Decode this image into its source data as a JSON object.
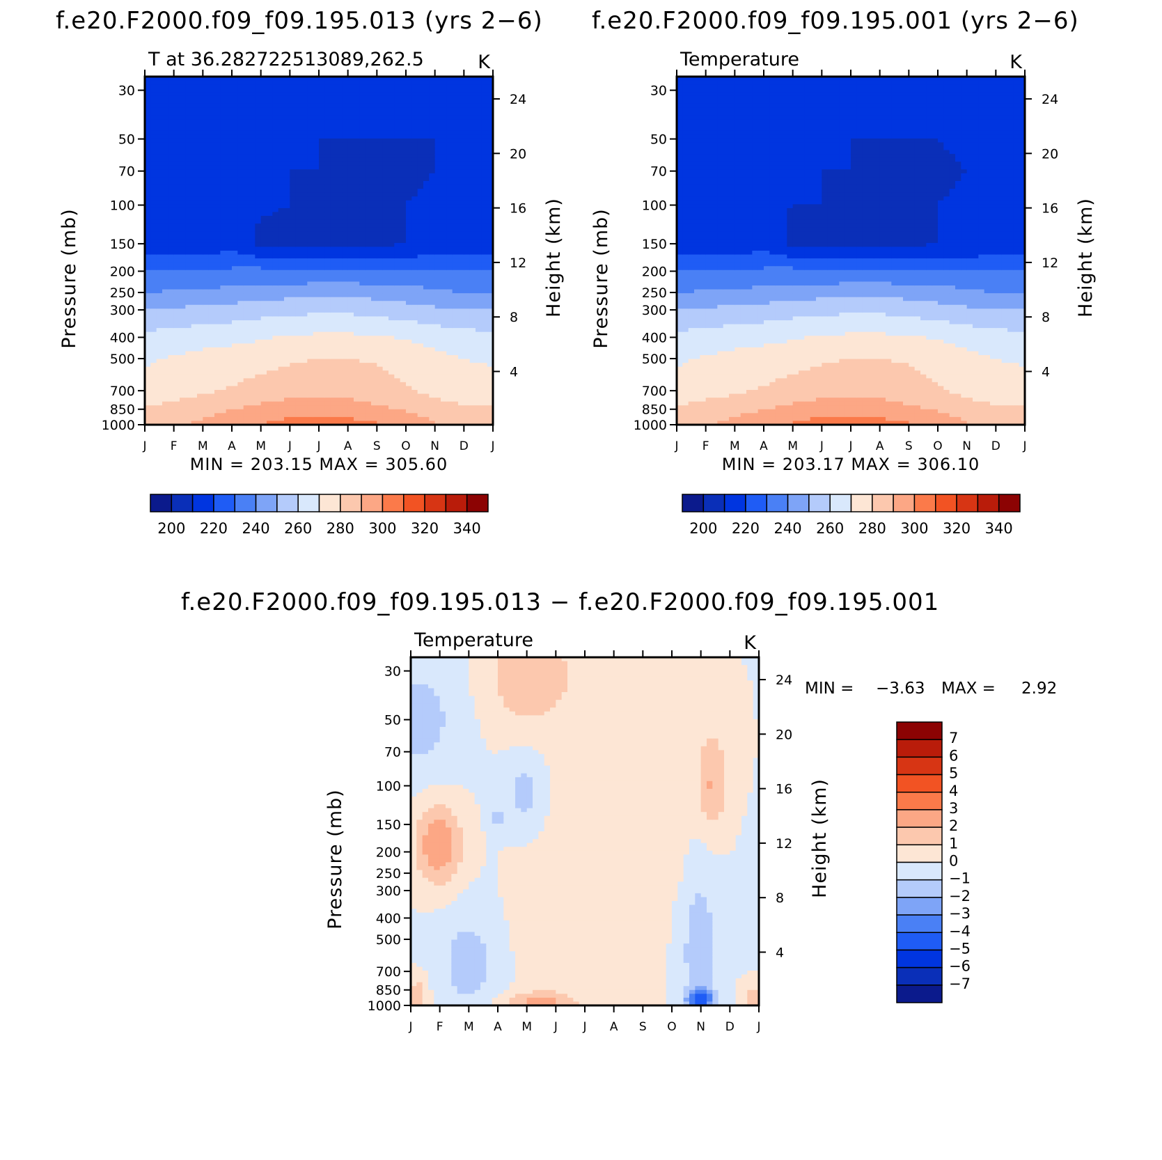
{
  "titles": {
    "top_left": "f.e20.F2000.f09_f09.195.013 (yrs 2−6)",
    "top_right": "f.e20.F2000.f09_f09.195.001 (yrs 2−6)",
    "bottom": "f.e20.F2000.f09_f09.195.013 − f.e20.F2000.f09_f09.195.001"
  },
  "chart_data": [
    {
      "type": "heatmap",
      "subtitle": "T at 36.282722513089,262.5",
      "units": "K",
      "ylabel": "Pressure (mb)",
      "ylabel_right": "Height (km)",
      "x_ticks": [
        "J",
        "F",
        "M",
        "A",
        "M",
        "J",
        "J",
        "A",
        "S",
        "O",
        "N",
        "D",
        "J"
      ],
      "y_ticks": [
        30,
        50,
        70,
        100,
        150,
        200,
        250,
        300,
        400,
        500,
        700,
        850,
        1000
      ],
      "y_ticks_right": [
        24,
        20,
        16,
        12,
        8,
        4
      ],
      "min_max_text": "MIN = 203.15 MAX = 305.60",
      "min": 203.15,
      "max": 305.6,
      "colorbar_labels": [
        "200",
        "220",
        "240",
        "260",
        "280",
        "300",
        "320",
        "340"
      ],
      "colorbar_levels": [
        200,
        210,
        220,
        230,
        240,
        250,
        260,
        270,
        280,
        290,
        300,
        310,
        320,
        330,
        340
      ],
      "palette": [
        "#0b1a8c",
        "#0a2fb8",
        "#0035e0",
        "#1f5cf5",
        "#4a80f5",
        "#7ea4f7",
        "#b4cbfb",
        "#d9e8fc",
        "#fde6d5",
        "#fcc8ae",
        "#fca785",
        "#fb7a4a",
        "#f25323",
        "#d73514",
        "#b91c0a",
        "#8c0303"
      ],
      "profile_columns": [
        {
          "t": 0,
          "y": [
            215,
            212,
            213,
            211,
            213,
            230,
            240,
            250,
            263,
            269,
            273,
            281,
            285
          ]
        },
        {
          "t": 1,
          "y": [
            215,
            211,
            212,
            211,
            213,
            230,
            241,
            251,
            264,
            271,
            275,
            284,
            288
          ]
        },
        {
          "t": 2,
          "y": [
            214,
            211,
            212,
            211,
            214,
            231,
            242,
            253,
            266,
            273,
            278,
            287,
            292
          ]
        },
        {
          "t": 3,
          "y": [
            214,
            211,
            211,
            211,
            215,
            232,
            243,
            254,
            267,
            275,
            281,
            290,
            296
          ]
        },
        {
          "t": 4,
          "y": [
            215,
            211,
            211,
            211,
            208,
            233,
            245,
            256,
            269,
            277,
            283,
            293,
            300
          ]
        },
        {
          "t": 5,
          "y": [
            216,
            211,
            210,
            210,
            207,
            231,
            246,
            257,
            271,
            279,
            285,
            296,
            303
          ]
        },
        {
          "t": 6,
          "y": [
            217,
            210,
            210,
            209,
            207,
            231,
            247,
            258,
            272,
            280,
            286,
            296,
            305
          ]
        },
        {
          "t": 7,
          "y": [
            217,
            210,
            209,
            208,
            208,
            231,
            247,
            258,
            272,
            280,
            286,
            295,
            304
          ]
        },
        {
          "t": 8,
          "y": [
            217,
            210,
            209,
            209,
            208,
            231,
            246,
            256,
            271,
            279,
            284,
            292,
            301
          ]
        },
        {
          "t": 9,
          "y": [
            216,
            210,
            209,
            210,
            210,
            231,
            244,
            254,
            269,
            277,
            281,
            289,
            297
          ]
        },
        {
          "t": 10,
          "y": [
            215,
            210,
            210,
            211,
            212,
            230,
            242,
            252,
            266,
            273,
            277,
            285,
            291
          ]
        },
        {
          "t": 11,
          "y": [
            215,
            211,
            211,
            213,
            214,
            230,
            240,
            250,
            264,
            270,
            274,
            282,
            287
          ]
        },
        {
          "t": 12,
          "y": [
            215,
            212,
            213,
            211,
            213,
            230,
            240,
            250,
            263,
            269,
            273,
            281,
            285
          ]
        }
      ]
    },
    {
      "type": "heatmap",
      "subtitle": "Temperature",
      "units": "K",
      "ylabel": "Pressure (mb)",
      "ylabel_right": "Height (km)",
      "x_ticks": [
        "J",
        "F",
        "M",
        "A",
        "M",
        "J",
        "J",
        "A",
        "S",
        "O",
        "N",
        "D",
        "J"
      ],
      "y_ticks": [
        30,
        50,
        70,
        100,
        150,
        200,
        250,
        300,
        400,
        500,
        700,
        850,
        1000
      ],
      "y_ticks_right": [
        24,
        20,
        16,
        12,
        8,
        4
      ],
      "min_max_text": "MIN = 203.17 MAX = 306.10",
      "min": 203.17,
      "max": 306.1,
      "colorbar_labels": [
        "200",
        "220",
        "240",
        "260",
        "280",
        "300",
        "320",
        "340"
      ],
      "colorbar_levels": [
        200,
        210,
        220,
        230,
        240,
        250,
        260,
        270,
        280,
        290,
        300,
        310,
        320,
        330,
        340
      ],
      "palette": [
        "#0b1a8c",
        "#0a2fb8",
        "#0035e0",
        "#1f5cf5",
        "#4a80f5",
        "#7ea4f7",
        "#b4cbfb",
        "#d9e8fc",
        "#fde6d5",
        "#fcc8ae",
        "#fca785",
        "#fb7a4a",
        "#f25323",
        "#d73514",
        "#b91c0a",
        "#8c0303"
      ],
      "profile_columns": [
        {
          "t": 0,
          "y": [
            215,
            212,
            212,
            211,
            213,
            230,
            240,
            250,
            263,
            269,
            273,
            281,
            285
          ]
        },
        {
          "t": 1,
          "y": [
            215,
            211,
            212,
            211,
            213,
            230,
            241,
            251,
            264,
            271,
            276,
            284,
            289
          ]
        },
        {
          "t": 2,
          "y": [
            214,
            211,
            211,
            211,
            214,
            231,
            242,
            253,
            266,
            273,
            278,
            287,
            293
          ]
        },
        {
          "t": 3,
          "y": [
            214,
            211,
            211,
            211,
            215,
            232,
            243,
            254,
            267,
            275,
            281,
            290,
            297
          ]
        },
        {
          "t": 4,
          "y": [
            215,
            211,
            211,
            210,
            208,
            233,
            245,
            256,
            269,
            277,
            283,
            293,
            301
          ]
        },
        {
          "t": 5,
          "y": [
            216,
            211,
            210,
            210,
            207,
            231,
            246,
            257,
            271,
            279,
            285,
            296,
            304
          ]
        },
        {
          "t": 6,
          "y": [
            217,
            210,
            210,
            209,
            207,
            231,
            247,
            258,
            272,
            280,
            286,
            296,
            306
          ]
        },
        {
          "t": 7,
          "y": [
            217,
            210,
            209,
            208,
            208,
            231,
            247,
            258,
            272,
            280,
            286,
            295,
            304
          ]
        },
        {
          "t": 8,
          "y": [
            217,
            210,
            209,
            209,
            208,
            231,
            246,
            256,
            271,
            279,
            284,
            292,
            301
          ]
        },
        {
          "t": 9,
          "y": [
            216,
            210,
            209,
            210,
            210,
            231,
            244,
            254,
            269,
            277,
            281,
            289,
            297
          ]
        },
        {
          "t": 10,
          "y": [
            215,
            211,
            210,
            211,
            210,
            230,
            242,
            252,
            266,
            273,
            277,
            285,
            291
          ]
        },
        {
          "t": 11,
          "y": [
            215,
            212,
            212,
            213,
            214,
            230,
            240,
            250,
            264,
            270,
            274,
            282,
            287
          ]
        },
        {
          "t": 12,
          "y": [
            215,
            212,
            212,
            211,
            213,
            230,
            240,
            250,
            263,
            269,
            273,
            281,
            285
          ]
        }
      ]
    },
    {
      "type": "heatmap",
      "subtitle": "Temperature",
      "units": "K",
      "ylabel": "Pressure (mb)",
      "ylabel_right": "Height (km)",
      "x_ticks": [
        "J",
        "F",
        "M",
        "A",
        "M",
        "J",
        "J",
        "A",
        "S",
        "O",
        "N",
        "D",
        "J"
      ],
      "y_ticks": [
        30,
        50,
        70,
        100,
        150,
        200,
        250,
        300,
        400,
        500,
        700,
        850,
        1000
      ],
      "y_ticks_right": [
        24,
        20,
        16,
        12,
        8,
        4
      ],
      "min_label": "MIN =",
      "min_value": "−3.63",
      "max_label": "MAX =",
      "max_value": "2.92",
      "min": -3.63,
      "max": 2.92,
      "colorbar_labels": [
        "7",
        "6",
        "5",
        "4",
        "3",
        "2",
        "1",
        "0",
        "−1",
        "−2",
        "−3",
        "−4",
        "−5",
        "−6",
        "−7"
      ],
      "colorbar_levels": [
        -7,
        -6,
        -5,
        -4,
        -3,
        -2,
        -1,
        0,
        1,
        2,
        3,
        4,
        5,
        6,
        7
      ],
      "palette": [
        "#0b1a8c",
        "#0a2fb8",
        "#0035e0",
        "#1f5cf5",
        "#4a80f5",
        "#7ea4f7",
        "#b4cbfb",
        "#d9e8fc",
        "#fde6d5",
        "#fcc8ae",
        "#fca785",
        "#fb7a4a",
        "#f25323",
        "#d73514",
        "#b91c0a",
        "#8c0303"
      ],
      "anomalies": [
        {
          "t": 0.3,
          "p": 50,
          "dt": 1.2,
          "dp": 0.55,
          "v": -1.6
        },
        {
          "t": 3.9,
          "p": 108,
          "dt": 0.6,
          "dp": 0.35,
          "v": -1.5
        },
        {
          "t": 3.0,
          "p": 140,
          "dt": 0.3,
          "dp": 0.12,
          "v": -1.3
        },
        {
          "t": 2.0,
          "p": 640,
          "dt": 1.0,
          "dp": 0.5,
          "v": -1.6
        },
        {
          "t": 9.95,
          "p": 560,
          "dt": 0.6,
          "dp": 0.85,
          "v": -1.8
        },
        {
          "t": 10.0,
          "p": 940,
          "dt": 0.5,
          "dp": 0.1,
          "v": -3.6
        },
        {
          "t": 3.9,
          "p": 32,
          "dt": 1.2,
          "dp": 0.5,
          "v": 1.6
        },
        {
          "t": 0.95,
          "p": 185,
          "dt": 0.8,
          "dp": 0.42,
          "v": 2.9
        },
        {
          "t": 10.4,
          "p": 105,
          "dt": 0.5,
          "dp": 0.42,
          "v": 1.7
        },
        {
          "t": 4.5,
          "p": 975,
          "dt": 1.3,
          "dp": 0.12,
          "v": 2.3
        },
        {
          "t": 0.25,
          "p": 900,
          "dt": 0.35,
          "dp": 0.2,
          "v": 1.6
        },
        {
          "t": 11.85,
          "p": 930,
          "dt": 0.45,
          "dp": 0.15,
          "v": 1.6
        },
        {
          "t": 5.5,
          "p": 32,
          "dt": 2.0,
          "dp": 0.55,
          "v": 0.7
        },
        {
          "t": 4.6,
          "p": 390,
          "dt": 1.2,
          "dp": 0.8,
          "v": 0.6
        },
        {
          "t": 8.3,
          "p": 230,
          "dt": 1.5,
          "dp": 0.5,
          "v": 0.55
        },
        {
          "t": 10.3,
          "p": 60,
          "dt": 1.0,
          "dp": 0.7,
          "v": 0.7
        },
        {
          "t": 7.6,
          "p": 750,
          "dt": 0.7,
          "dp": 0.15,
          "v": 0.6
        }
      ]
    }
  ]
}
